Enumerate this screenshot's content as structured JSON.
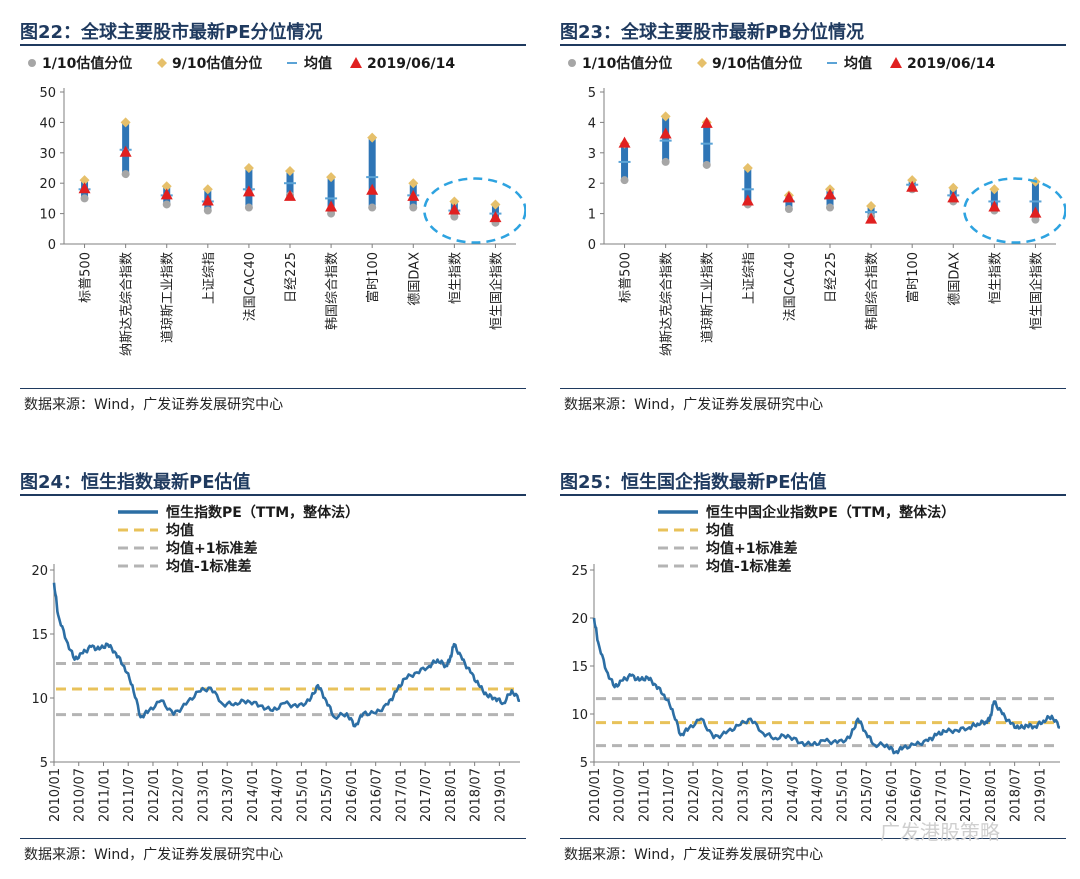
{
  "panels": [
    {
      "title": "图22：全球主要股市最新PE分位情况",
      "source": "数据来源：Wind，广发证券发展研究中心"
    },
    {
      "title": "图23：全球主要股市最新PB分位情况",
      "source": "数据来源：Wind，广发证券发展研究中心"
    },
    {
      "title": "图24：恒生指数最新PE估值",
      "source": "数据来源：Wind，广发证券发展研究中心"
    },
    {
      "title": "图25：恒生国企指数最新PE估值",
      "source": "数据来源：Wind，广发证券发展研究中心"
    }
  ],
  "watermark": "广发港股策略",
  "chart_data": [
    {
      "type": "scatter",
      "categories": [
        "标普500",
        "纳斯达克综合指数",
        "道琼斯工业指数",
        "上证综指",
        "法国CAC40",
        "日经225",
        "韩国综合指数",
        "富时100",
        "德国DAX",
        "恒生指数",
        "恒生国企指数"
      ],
      "legend": [
        "1/10估值分位",
        "9/10估值分位",
        "均值",
        "2019/06/14"
      ],
      "legend_position": "top",
      "ylim": [
        0,
        50
      ],
      "yticks": [
        0,
        10,
        20,
        30,
        40,
        50
      ],
      "series": [
        {
          "name": "1/10估值分位",
          "values": [
            15,
            23,
            13,
            11,
            12,
            16,
            10,
            12,
            12,
            9,
            7
          ]
        },
        {
          "name": "9/10估值分位",
          "values": [
            21,
            40,
            19,
            18,
            25,
            24,
            22,
            35,
            20,
            14,
            13
          ]
        },
        {
          "name": "均值",
          "values": [
            18,
            31,
            16,
            14,
            18,
            20,
            15,
            22,
            16,
            11,
            10
          ]
        },
        {
          "name": "2019/06/14",
          "values": [
            18,
            30,
            16,
            14,
            17,
            15.5,
            12,
            17.5,
            15.5,
            11,
            8.5
          ]
        }
      ],
      "colors": {
        "low": "#a6a6a6",
        "high": "#e6c06b",
        "mean": "#5ba3d6",
        "current": "#e02020",
        "range": "#2e75b6",
        "highlight": "#2ea3e0"
      },
      "highlight_categories": [
        "恒生指数",
        "恒生国企指数"
      ]
    },
    {
      "type": "scatter",
      "categories": [
        "标普500",
        "纳斯达克综合指数",
        "道琼斯工业指数",
        "上证综指",
        "法国CAC40",
        "日经225",
        "韩国综合指数",
        "富时100",
        "德国DAX",
        "恒生指数",
        "恒生国企指数"
      ],
      "legend": [
        "1/10估值分位",
        "9/10估值分位",
        "均值",
        "2019/06/14"
      ],
      "legend_position": "top",
      "ylim": [
        0,
        5
      ],
      "yticks": [
        0,
        1,
        2,
        3,
        4,
        5
      ],
      "series": [
        {
          "name": "1/10估值分位",
          "values": [
            2.1,
            2.7,
            2.6,
            1.3,
            1.15,
            1.2,
            0.9,
            1.8,
            1.4,
            1.1,
            0.8
          ]
        },
        {
          "name": "9/10估值分位",
          "values": [
            3.3,
            4.2,
            4.0,
            2.5,
            1.6,
            1.8,
            1.25,
            2.1,
            1.85,
            1.8,
            2.05
          ]
        },
        {
          "name": "均值",
          "values": [
            2.7,
            3.4,
            3.3,
            1.8,
            1.4,
            1.5,
            1.05,
            1.95,
            1.6,
            1.4,
            1.4
          ]
        },
        {
          "name": "2019/06/14",
          "values": [
            3.3,
            3.6,
            3.95,
            1.4,
            1.5,
            1.6,
            0.8,
            1.85,
            1.5,
            1.2,
            1.0
          ]
        }
      ],
      "colors": {
        "low": "#a6a6a6",
        "high": "#e6c06b",
        "mean": "#5ba3d6",
        "current": "#e02020",
        "range": "#2e75b6",
        "highlight": "#2ea3e0"
      },
      "highlight_categories": [
        "恒生指数",
        "恒生国企指数"
      ]
    },
    {
      "type": "line",
      "legend": [
        "恒生指数PE（TTM，整体法）",
        "均值",
        "均值+1标准差",
        "均值-1标准差"
      ],
      "legend_position": "top",
      "ylim": [
        5,
        20
      ],
      "yticks": [
        5,
        10,
        15,
        20
      ],
      "xticks": [
        "2010/01",
        "2010/07",
        "2011/01",
        "2011/07",
        "2012/01",
        "2012/07",
        "2013/01",
        "2013/07",
        "2014/01",
        "2014/07",
        "2015/01",
        "2015/07",
        "2016/01",
        "2016/07",
        "2017/01",
        "2017/07",
        "2018/01",
        "2018/07",
        "2019/01"
      ],
      "x_range": [
        "2010/01",
        "2019/06"
      ],
      "series": [
        {
          "name": "恒生指数PE（TTM，整体法）",
          "x": [
            "2010/01",
            "2010/02",
            "2010/04",
            "2010/06",
            "2010/08",
            "2010/10",
            "2010/12",
            "2011/02",
            "2011/04",
            "2011/06",
            "2011/08",
            "2011/10",
            "2011/12",
            "2012/03",
            "2012/06",
            "2012/09",
            "2012/12",
            "2013/03",
            "2013/06",
            "2013/09",
            "2013/12",
            "2014/03",
            "2014/06",
            "2014/09",
            "2014/12",
            "2015/03",
            "2015/05",
            "2015/07",
            "2015/09",
            "2015/12",
            "2016/02",
            "2016/04",
            "2016/07",
            "2016/10",
            "2016/12",
            "2017/02",
            "2017/05",
            "2017/08",
            "2017/10",
            "2017/12",
            "2018/01",
            "2018/02",
            "2018/04",
            "2018/06",
            "2018/08",
            "2018/10",
            "2018/12",
            "2019/02",
            "2019/04",
            "2019/06"
          ],
          "values": [
            19.0,
            16.5,
            14.5,
            13.0,
            13.5,
            14.0,
            13.8,
            14.2,
            13.5,
            12.5,
            11.0,
            8.5,
            9.0,
            9.8,
            8.7,
            9.5,
            10.5,
            10.8,
            9.5,
            9.6,
            9.8,
            9.4,
            9.0,
            9.6,
            9.3,
            9.8,
            11.0,
            9.8,
            8.5,
            8.8,
            7.8,
            8.8,
            8.8,
            9.5,
            10.5,
            11.5,
            12.0,
            12.5,
            13.0,
            12.5,
            13.0,
            14.2,
            13.0,
            12.0,
            11.0,
            10.2,
            10.0,
            9.6,
            10.6,
            9.8
          ]
        },
        {
          "name": "均值",
          "values": [
            10.7
          ]
        },
        {
          "name": "均值+1标准差",
          "values": [
            12.7
          ]
        },
        {
          "name": "均值-1标准差",
          "values": [
            8.7
          ]
        }
      ],
      "colors": {
        "line": "#2c6ea4",
        "mean": "#e8c25a",
        "band": "#b4b4b4"
      }
    },
    {
      "type": "line",
      "legend": [
        "恒生中国企业指数PE（TTM，整体法）",
        "均值",
        "均值+1标准差",
        "均值-1标准差"
      ],
      "legend_position": "top",
      "ylim": [
        5,
        25
      ],
      "yticks": [
        5,
        10,
        15,
        20,
        25
      ],
      "xticks": [
        "2010/01",
        "2010/07",
        "2011/01",
        "2011/07",
        "2012/01",
        "2012/07",
        "2013/01",
        "2013/07",
        "2014/01",
        "2014/07",
        "2015/01",
        "2015/07",
        "2016/01",
        "2016/07",
        "2017/01",
        "2017/07",
        "2018/01",
        "2018/07",
        "2019/01"
      ],
      "x_range": [
        "2010/01",
        "2019/06"
      ],
      "series": [
        {
          "name": "恒生中国企业指数PE（TTM，整体法）",
          "x": [
            "2010/01",
            "2010/02",
            "2010/04",
            "2010/06",
            "2010/08",
            "2010/10",
            "2010/12",
            "2011/02",
            "2011/04",
            "2011/06",
            "2011/08",
            "2011/10",
            "2011/12",
            "2012/03",
            "2012/06",
            "2012/09",
            "2012/12",
            "2013/03",
            "2013/06",
            "2013/09",
            "2013/12",
            "2014/03",
            "2014/06",
            "2014/09",
            "2014/12",
            "2015/03",
            "2015/05",
            "2015/07",
            "2015/09",
            "2015/12",
            "2016/02",
            "2016/04",
            "2016/07",
            "2016/10",
            "2016/12",
            "2017/02",
            "2017/05",
            "2017/08",
            "2017/10",
            "2017/12",
            "2018/01",
            "2018/02",
            "2018/04",
            "2018/06",
            "2018/08",
            "2018/10",
            "2018/12",
            "2019/02",
            "2019/04",
            "2019/06"
          ],
          "values": [
            20.0,
            17.5,
            14.5,
            12.8,
            13.5,
            14.0,
            13.5,
            13.8,
            13.0,
            12.0,
            10.5,
            7.8,
            8.5,
            9.5,
            7.5,
            8.0,
            8.8,
            9.5,
            8.0,
            7.5,
            7.8,
            7.0,
            6.8,
            7.2,
            7.0,
            7.5,
            9.5,
            8.0,
            6.8,
            6.8,
            6.0,
            6.5,
            6.8,
            7.2,
            7.8,
            8.2,
            8.3,
            8.6,
            9.0,
            9.2,
            9.5,
            11.3,
            10.0,
            9.0,
            8.5,
            8.8,
            8.7,
            9.3,
            9.8,
            8.6
          ]
        },
        {
          "name": "均值",
          "values": [
            9.1
          ]
        },
        {
          "name": "均值+1标准差",
          "values": [
            11.6
          ]
        },
        {
          "name": "均值-1标准差",
          "values": [
            6.7
          ]
        }
      ],
      "colors": {
        "line": "#2c6ea4",
        "mean": "#e8c25a",
        "band": "#b4b4b4"
      }
    }
  ]
}
